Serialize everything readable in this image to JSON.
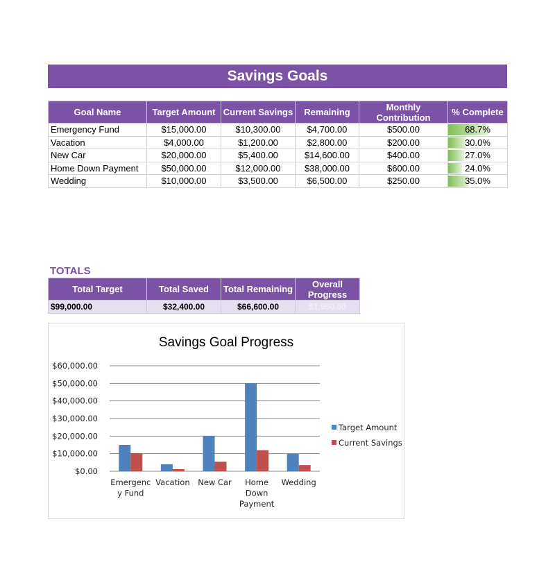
{
  "title": "Savings Goals",
  "goals_table": {
    "headers": [
      "Goal Name",
      "Target Amount",
      "Current Savings",
      "Remaining",
      "Monthly Contribution",
      "% Complete"
    ],
    "rows": [
      {
        "name": "Emergency Fund",
        "target": "$15,000.00",
        "current": "$10,300.00",
        "remaining": "$4,700.00",
        "monthly": "$500.00",
        "pct": "68.7%",
        "pct_value": 0.687
      },
      {
        "name": "Vacation",
        "target": "$4,000.00",
        "current": "$1,200.00",
        "remaining": "$2,800.00",
        "monthly": "$200.00",
        "pct": "30.0%",
        "pct_value": 0.3
      },
      {
        "name": "New Car",
        "target": "$20,000.00",
        "current": "$5,400.00",
        "remaining": "$14,600.00",
        "monthly": "$400.00",
        "pct": "27.0%",
        "pct_value": 0.27
      },
      {
        "name": "Home Down Payment",
        "target": "$50,000.00",
        "current": "$12,000.00",
        "remaining": "$38,000.00",
        "monthly": "$600.00",
        "pct": "24.0%",
        "pct_value": 0.24
      },
      {
        "name": "Wedding",
        "target": "$10,000.00",
        "current": "$3,500.00",
        "remaining": "$6,500.00",
        "monthly": "$250.00",
        "pct": "35.0%",
        "pct_value": 0.35
      }
    ]
  },
  "totals": {
    "label": "TOTALS",
    "headers": [
      "Total Target",
      "Total Saved",
      "Total Remaining",
      "Overall Progress"
    ],
    "values": [
      "$99,000.00",
      "$32,400.00",
      "$66,600.00",
      "$1,950.00"
    ]
  },
  "colors": {
    "header_purple": "#7b52a5",
    "totals_row_bg": "#e6dff0",
    "progress_green": "#7fbf55",
    "series_target": "#4f81bd",
    "series_current": "#c0504d"
  },
  "chart_data": {
    "type": "bar",
    "title": "Savings Goal Progress",
    "categories": [
      "Emergency Fund",
      "Vacation",
      "New Car",
      "Home Down Payment",
      "Wedding"
    ],
    "category_lines": [
      [
        "Emergenc",
        "y Fund"
      ],
      [
        "Vacation"
      ],
      [
        "New Car"
      ],
      [
        "Home",
        "Down",
        "Payment"
      ],
      [
        "Wedding"
      ]
    ],
    "series": [
      {
        "name": "Target Amount",
        "values": [
          15000,
          4000,
          20000,
          50000,
          10000
        ]
      },
      {
        "name": "Current Savings",
        "values": [
          10300,
          1200,
          5400,
          12000,
          3500
        ]
      }
    ],
    "ylim": [
      0,
      60000
    ],
    "y_ticks": [
      0,
      10000,
      20000,
      30000,
      40000,
      50000,
      60000
    ],
    "y_tick_labels": [
      "$0.00",
      "$10,000.00",
      "$20,000.00",
      "$30,000.00",
      "$40,000.00",
      "$50,000.00",
      "$60,000.00"
    ],
    "grid": true,
    "legend_position": "right"
  }
}
